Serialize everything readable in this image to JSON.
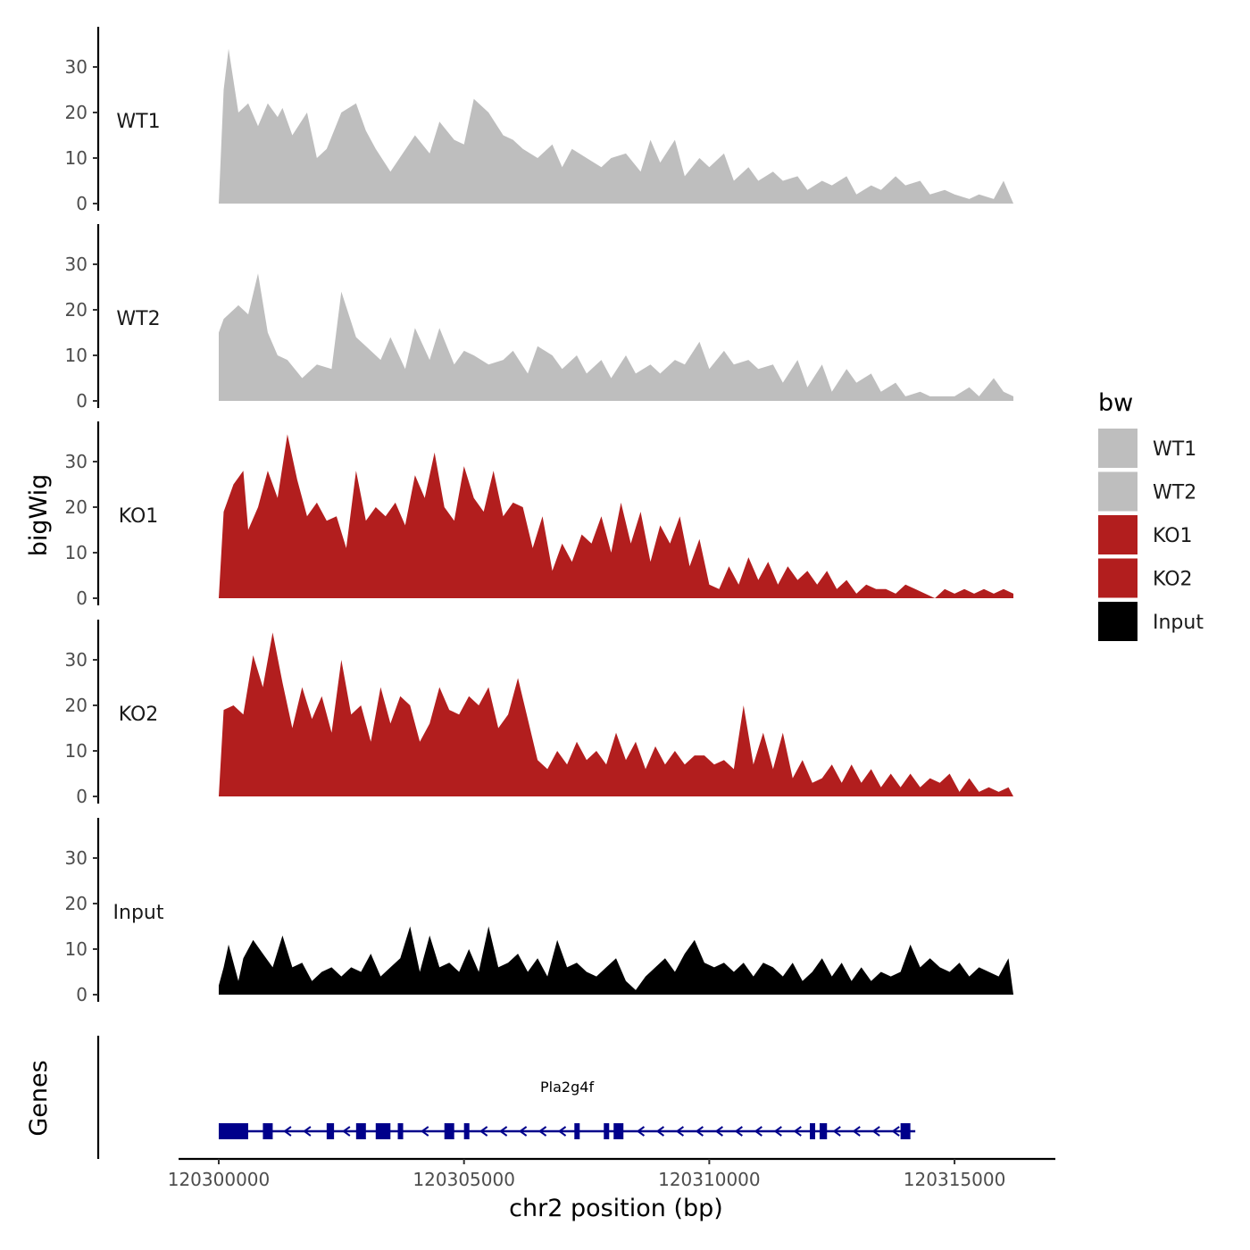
{
  "chart_data": {
    "type": "area",
    "x_range": [
      120300000,
      120316200
    ],
    "y_range": [
      0,
      38
    ],
    "y_ticks": [
      0,
      10,
      20,
      30
    ],
    "x_ticks": [
      120300000,
      120305000,
      120310000,
      120315000
    ],
    "x_tick_labels": [
      "120300000",
      "120305000",
      "120310000",
      "120315000"
    ],
    "xlabel": "chr2 position (bp)",
    "ylabel": "bigWig",
    "genes_label": "Genes",
    "legend_title": "bw",
    "legend_position": "right",
    "tracks": [
      {
        "name": "WT1",
        "color": "#bebebe",
        "x": [
          120300000,
          120300100,
          120300200,
          120300400,
          120300600,
          120300800,
          120301000,
          120301200,
          120301300,
          120301500,
          120301800,
          120302000,
          120302200,
          120302500,
          120302800,
          120303000,
          120303200,
          120303500,
          120304000,
          120304300,
          120304500,
          120304800,
          120305000,
          120305200,
          120305500,
          120305800,
          120306000,
          120306200,
          120306500,
          120306800,
          120307000,
          120307200,
          120307500,
          120307800,
          120308000,
          120308300,
          120308600,
          120308800,
          120309000,
          120309300,
          120309500,
          120309800,
          120310000,
          120310300,
          120310500,
          120310800,
          120311000,
          120311300,
          120311500,
          120311800,
          120312000,
          120312300,
          120312500,
          120312800,
          120313000,
          120313300,
          120313500,
          120313800,
          120314000,
          120314300,
          120314500,
          120314800,
          120315000,
          120315300,
          120315500,
          120315800,
          120316000,
          120316200
        ],
        "values": [
          0,
          25,
          34,
          20,
          22,
          17,
          22,
          19,
          21,
          15,
          20,
          10,
          12,
          20,
          22,
          16,
          12,
          7,
          15,
          11,
          18,
          14,
          13,
          23,
          20,
          15,
          14,
          12,
          10,
          13,
          8,
          12,
          10,
          8,
          10,
          11,
          7,
          14,
          9,
          14,
          6,
          10,
          8,
          11,
          5,
          8,
          5,
          7,
          5,
          6,
          3,
          5,
          4,
          6,
          2,
          4,
          3,
          6,
          4,
          5,
          2,
          3,
          2,
          1,
          2,
          1,
          5,
          0
        ]
      },
      {
        "name": "WT2",
        "color": "#bebebe",
        "x": [
          120300000,
          120300100,
          120300200,
          120300400,
          120300600,
          120300800,
          120301000,
          120301200,
          120301400,
          120301700,
          120302000,
          120302300,
          120302500,
          120302800,
          120303000,
          120303300,
          120303500,
          120303800,
          120304000,
          120304300,
          120304500,
          120304800,
          120305000,
          120305200,
          120305500,
          120305800,
          120306000,
          120306300,
          120306500,
          120306800,
          120307000,
          120307300,
          120307500,
          120307800,
          120308000,
          120308300,
          120308500,
          120308800,
          120309000,
          120309300,
          120309500,
          120309800,
          120310000,
          120310300,
          120310500,
          120310800,
          120311000,
          120311300,
          120311500,
          120311800,
          120312000,
          120312300,
          120312500,
          120312800,
          120313000,
          120313300,
          120313500,
          120313800,
          120314000,
          120314300,
          120314500,
          120314800,
          120315000,
          120315300,
          120315500,
          120315800,
          120316000,
          120316200
        ],
        "values": [
          15,
          18,
          19,
          21,
          19,
          28,
          15,
          10,
          9,
          5,
          8,
          7,
          24,
          14,
          12,
          9,
          14,
          7,
          16,
          9,
          16,
          8,
          11,
          10,
          8,
          9,
          11,
          6,
          12,
          10,
          7,
          10,
          6,
          9,
          5,
          10,
          6,
          8,
          6,
          9,
          8,
          13,
          7,
          11,
          8,
          9,
          7,
          8,
          4,
          9,
          3,
          8,
          2,
          7,
          4,
          6,
          2,
          4,
          1,
          2,
          1,
          1,
          1,
          3,
          1,
          5,
          2,
          1
        ]
      },
      {
        "name": "KO1",
        "color": "#b21e1e",
        "x": [
          120300000,
          120300100,
          120300300,
          120300500,
          120300600,
          120300800,
          120301000,
          120301200,
          120301400,
          120301600,
          120301800,
          120302000,
          120302200,
          120302400,
          120302600,
          120302800,
          120303000,
          120303200,
          120303400,
          120303600,
          120303800,
          120304000,
          120304200,
          120304400,
          120304600,
          120304800,
          120305000,
          120305200,
          120305400,
          120305600,
          120305800,
          120306000,
          120306200,
          120306400,
          120306600,
          120306800,
          120307000,
          120307200,
          120307400,
          120307600,
          120307800,
          120308000,
          120308200,
          120308400,
          120308600,
          120308800,
          120309000,
          120309200,
          120309400,
          120309600,
          120309800,
          120310000,
          120310200,
          120310400,
          120310600,
          120310800,
          120311000,
          120311200,
          120311400,
          120311600,
          120311800,
          120312000,
          120312200,
          120312400,
          120312600,
          120312800,
          120313000,
          120313200,
          120313400,
          120313600,
          120313800,
          120314000,
          120314200,
          120314400,
          120314600,
          120314800,
          120315000,
          120315200,
          120315400,
          120315600,
          120315800,
          120316000,
          120316200
        ],
        "values": [
          0,
          19,
          25,
          28,
          15,
          20,
          28,
          22,
          36,
          26,
          18,
          21,
          17,
          18,
          11,
          28,
          17,
          20,
          18,
          21,
          16,
          27,
          22,
          32,
          20,
          17,
          29,
          22,
          19,
          28,
          18,
          21,
          20,
          11,
          18,
          6,
          12,
          8,
          14,
          12,
          18,
          10,
          21,
          12,
          19,
          8,
          16,
          12,
          18,
          7,
          13,
          3,
          2,
          7,
          3,
          9,
          4,
          8,
          3,
          7,
          4,
          6,
          3,
          6,
          2,
          4,
          1,
          3,
          2,
          2,
          1,
          3,
          2,
          1,
          0,
          2,
          1,
          2,
          1,
          2,
          1,
          2,
          1
        ]
      },
      {
        "name": "KO2",
        "color": "#b21e1e",
        "x": [
          120300000,
          120300100,
          120300300,
          120300500,
          120300700,
          120300900,
          120301100,
          120301300,
          120301500,
          120301700,
          120301900,
          120302100,
          120302300,
          120302500,
          120302700,
          120302900,
          120303100,
          120303300,
          120303500,
          120303700,
          120303900,
          120304100,
          120304300,
          120304500,
          120304700,
          120304900,
          120305100,
          120305300,
          120305500,
          120305700,
          120305900,
          120306100,
          120306300,
          120306500,
          120306700,
          120306900,
          120307100,
          120307300,
          120307500,
          120307700,
          120307900,
          120308100,
          120308300,
          120308500,
          120308700,
          120308900,
          120309100,
          120309300,
          120309500,
          120309700,
          120309900,
          120310100,
          120310300,
          120310500,
          120310700,
          120310900,
          120311100,
          120311300,
          120311500,
          120311700,
          120311900,
          120312100,
          120312300,
          120312500,
          120312700,
          120312900,
          120313100,
          120313300,
          120313500,
          120313700,
          120313900,
          120314100,
          120314300,
          120314500,
          120314700,
          120314900,
          120315100,
          120315300,
          120315500,
          120315700,
          120315900,
          120316100,
          120316200
        ],
        "values": [
          0,
          19,
          20,
          18,
          31,
          24,
          36,
          25,
          15,
          24,
          17,
          22,
          14,
          30,
          18,
          20,
          12,
          24,
          16,
          22,
          20,
          12,
          16,
          24,
          19,
          18,
          22,
          20,
          24,
          15,
          18,
          26,
          17,
          8,
          6,
          10,
          7,
          12,
          8,
          10,
          7,
          14,
          8,
          12,
          6,
          11,
          7,
          10,
          7,
          9,
          9,
          7,
          8,
          6,
          20,
          7,
          14,
          6,
          14,
          4,
          8,
          3,
          4,
          7,
          3,
          7,
          3,
          6,
          2,
          5,
          2,
          5,
          2,
          4,
          3,
          5,
          1,
          4,
          1,
          2,
          1,
          2,
          0
        ]
      },
      {
        "name": "Input",
        "color": "#000000",
        "x": [
          120300000,
          120300100,
          120300200,
          120300400,
          120300500,
          120300700,
          120300900,
          120301100,
          120301300,
          120301500,
          120301700,
          120301900,
          120302100,
          120302300,
          120302500,
          120302700,
          120302900,
          120303100,
          120303300,
          120303500,
          120303700,
          120303900,
          120304100,
          120304300,
          120304500,
          120304700,
          120304900,
          120305100,
          120305300,
          120305500,
          120305700,
          120305900,
          120306100,
          120306300,
          120306500,
          120306700,
          120306900,
          120307100,
          120307300,
          120307500,
          120307700,
          120307900,
          120308100,
          120308300,
          120308500,
          120308700,
          120308900,
          120309100,
          120309300,
          120309500,
          120309700,
          120309900,
          120310100,
          120310300,
          120310500,
          120310700,
          120310900,
          120311100,
          120311300,
          120311500,
          120311700,
          120311900,
          120312100,
          120312300,
          120312500,
          120312700,
          120312900,
          120313100,
          120313300,
          120313500,
          120313700,
          120313900,
          120314100,
          120314300,
          120314500,
          120314700,
          120314900,
          120315100,
          120315300,
          120315500,
          120315700,
          120315900,
          120316100,
          120316200
        ],
        "values": [
          2,
          6,
          11,
          3,
          8,
          12,
          9,
          6,
          13,
          6,
          7,
          3,
          5,
          6,
          4,
          6,
          5,
          9,
          4,
          6,
          8,
          15,
          5,
          13,
          6,
          7,
          5,
          10,
          5,
          15,
          6,
          7,
          9,
          5,
          8,
          4,
          12,
          6,
          7,
          5,
          4,
          6,
          8,
          3,
          1,
          4,
          6,
          8,
          5,
          9,
          12,
          7,
          6,
          7,
          5,
          7,
          4,
          7,
          6,
          4,
          7,
          3,
          5,
          8,
          4,
          7,
          3,
          6,
          3,
          5,
          4,
          5,
          11,
          6,
          8,
          6,
          5,
          7,
          4,
          6,
          5,
          4,
          8,
          0
        ]
      }
    ],
    "gene": {
      "name": "Pla2g4f",
      "color": "#00008b",
      "strand": "-",
      "start": 120300000,
      "end": 120314200,
      "exons": [
        [
          120300000,
          120300600
        ],
        [
          120300900,
          120301100
        ],
        [
          120302200,
          120302350
        ],
        [
          120302800,
          120303000
        ],
        [
          120303200,
          120303500
        ],
        [
          120303650,
          120303750
        ],
        [
          120304600,
          120304800
        ],
        [
          120305000,
          120305100
        ],
        [
          120307250,
          120307350
        ],
        [
          120307850,
          120307950
        ],
        [
          120308050,
          120308250
        ],
        [
          120312050,
          120312150
        ],
        [
          120312250,
          120312400
        ],
        [
          120313900,
          120314100
        ]
      ]
    }
  }
}
